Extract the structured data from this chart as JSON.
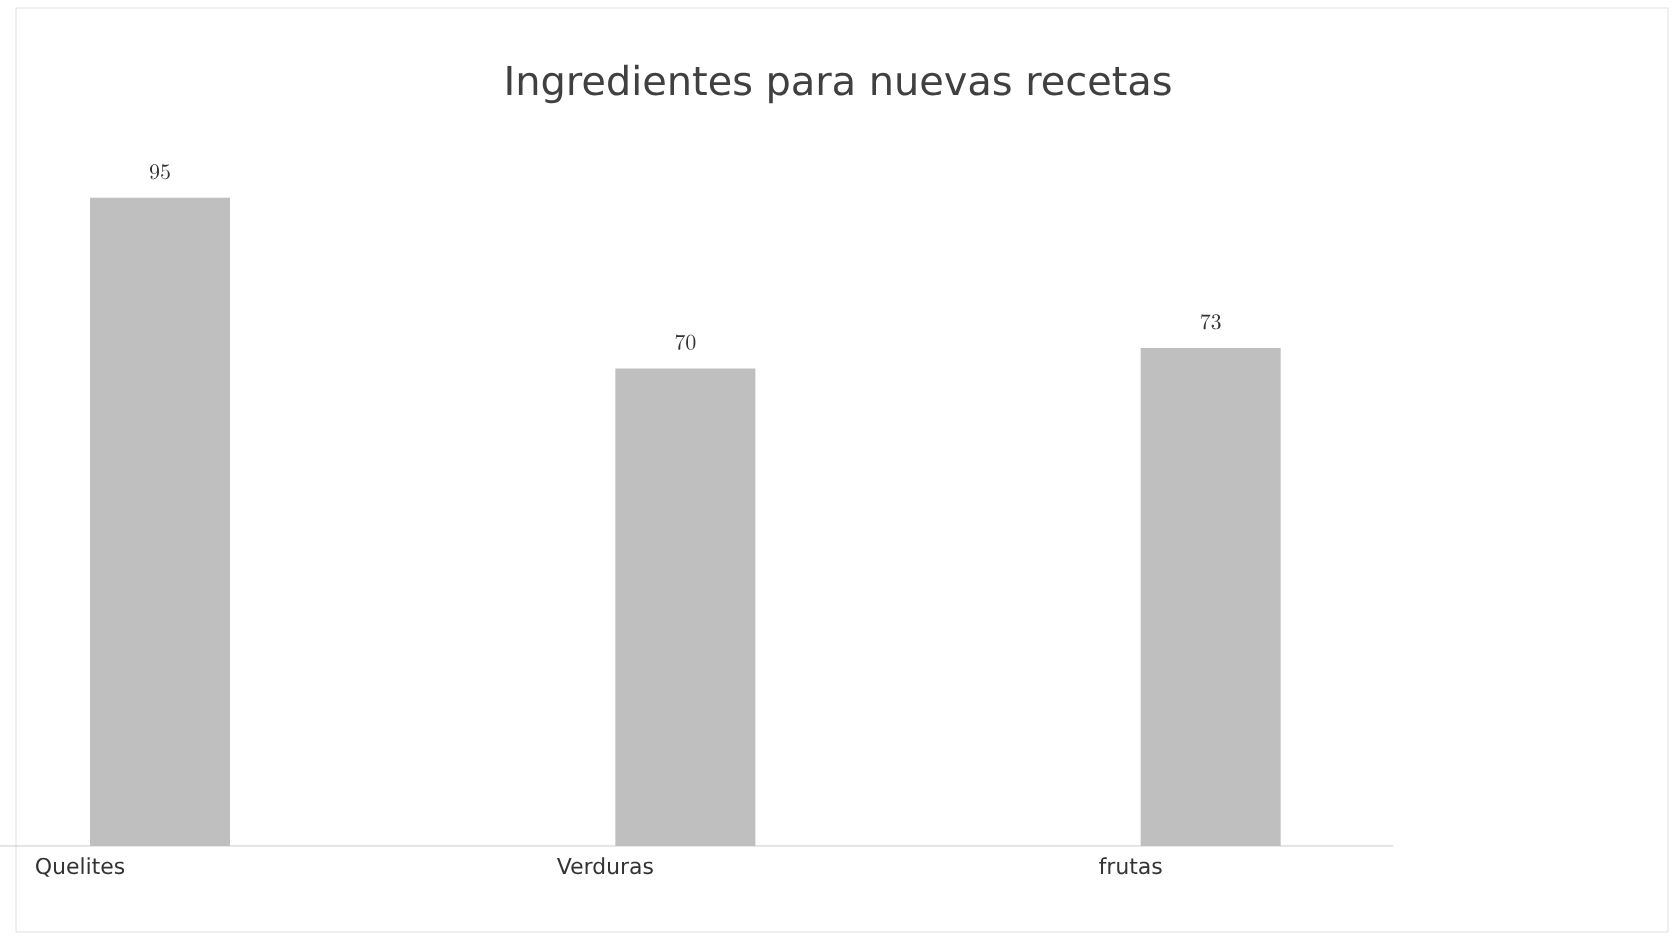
{
  "chart_data": {
    "type": "bar",
    "title": "Ingredientes para nuevas recetas",
    "categories": [
      "Quelites",
      "Verduras",
      "frutas"
    ],
    "values": [
      95,
      70,
      73
    ],
    "color": "#bfbfbf",
    "data_labels": true
  }
}
